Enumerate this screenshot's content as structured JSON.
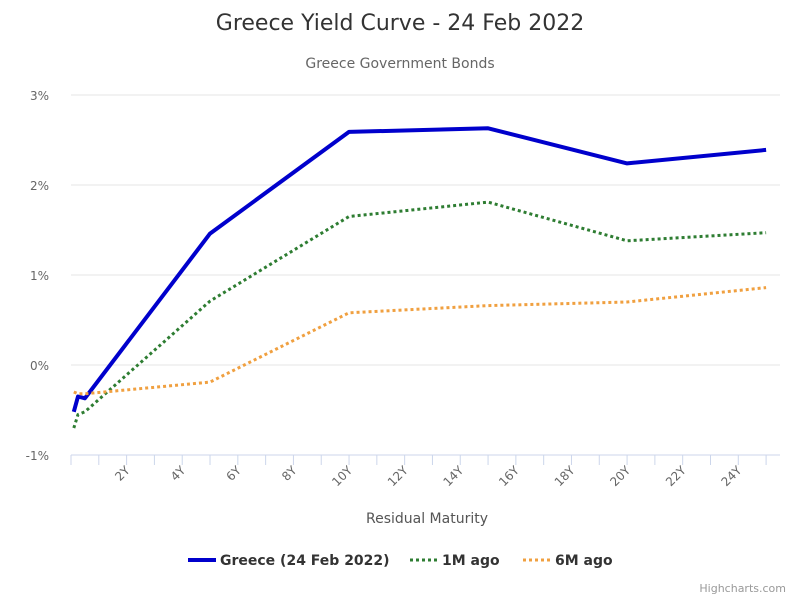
{
  "chart_data": {
    "type": "line",
    "title": "Greece Yield Curve - 24 Feb 2022",
    "subtitle": "Greece Government Bonds",
    "xlabel": "Residual Maturity",
    "ylabel": "",
    "x_unit": "years",
    "xlim": [
      0,
      25.5
    ],
    "ylim": [
      -1,
      3
    ],
    "x_ticks": [
      2,
      4,
      6,
      8,
      10,
      12,
      14,
      16,
      18,
      20,
      22,
      24
    ],
    "x_tick_labels": [
      "2Y",
      "4Y",
      "6Y",
      "8Y",
      "10Y",
      "12Y",
      "14Y",
      "16Y",
      "18Y",
      "20Y",
      "22Y",
      "24Y"
    ],
    "y_ticks": [
      -1,
      0,
      1,
      2,
      3
    ],
    "y_tick_labels": [
      "-1%",
      "0%",
      "1%",
      "2%",
      "3%"
    ],
    "grid": "horizontal",
    "legend_position": "bottom",
    "credits": "Highcharts.com",
    "series": [
      {
        "name": "Greece (24 Feb 2022)",
        "color": "#0000cc",
        "style": "solid",
        "x": [
          0.1,
          0.25,
          0.5,
          5,
          10,
          15,
          20,
          25
        ],
        "y": [
          -0.52,
          -0.35,
          -0.37,
          1.46,
          2.59,
          2.63,
          2.24,
          2.39
        ]
      },
      {
        "name": "1M ago",
        "color": "#2e7d32",
        "style": "dotted",
        "x": [
          0.1,
          0.25,
          0.5,
          5,
          10,
          15,
          20,
          25
        ],
        "y": [
          -0.7,
          -0.55,
          -0.52,
          0.71,
          1.65,
          1.81,
          1.38,
          1.47
        ]
      },
      {
        "name": "6M ago",
        "color": "#f0a040",
        "style": "dotted",
        "x": [
          0.1,
          0.25,
          0.5,
          5,
          10,
          15,
          20,
          25
        ],
        "y": [
          -0.3,
          -0.32,
          -0.32,
          -0.19,
          0.58,
          0.66,
          0.7,
          0.86
        ]
      }
    ]
  }
}
